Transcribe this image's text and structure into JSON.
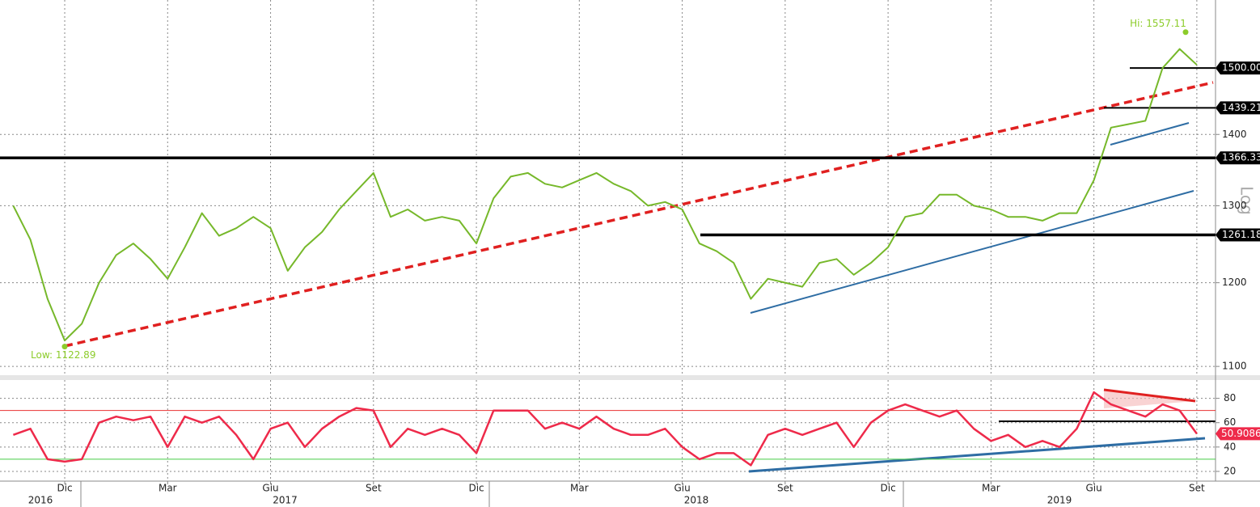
{
  "chart_data": {
    "type": "line",
    "ylog": true,
    "grid": true,
    "categories": [
      null,
      null,
      null,
      "Dic",
      null,
      null,
      null,
      null,
      null,
      "Mar",
      null,
      null,
      null,
      null,
      null,
      "Giu",
      null,
      null,
      null,
      null,
      null,
      "Set",
      null,
      null,
      null,
      null,
      null,
      "Dic",
      null,
      null,
      null,
      null,
      null,
      "Mar",
      null,
      null,
      null,
      null,
      null,
      "Giu",
      null,
      null,
      null,
      null,
      null,
      "Set",
      null,
      null,
      null,
      null,
      null,
      "Dic",
      null,
      null,
      null,
      null,
      null,
      "Mar",
      null,
      null,
      null,
      null,
      null,
      "Giu",
      null,
      null,
      null,
      null,
      null,
      "Set",
      null
    ],
    "years": [
      "2016",
      "2017",
      "2018",
      "2019"
    ],
    "series": [
      {
        "color": "#76b82a",
        "values": [
          1300,
          1255,
          1180,
          1130,
          1150,
          1200,
          1235,
          1250,
          1230,
          1205,
          1245,
          1290,
          1260,
          1270,
          1285,
          1270,
          1215,
          1245,
          1265,
          1295,
          1320,
          1345,
          1285,
          1295,
          1280,
          1285,
          1280,
          1250,
          1310,
          1340,
          1345,
          1330,
          1325,
          1335,
          1345,
          1330,
          1320,
          1300,
          1305,
          1295,
          1250,
          1240,
          1225,
          1180,
          1205,
          1200,
          1195,
          1225,
          1230,
          1210,
          1225,
          1245,
          1285,
          1290,
          1315,
          1315,
          1300,
          1295,
          1285,
          1285,
          1280,
          1290,
          1290,
          1335,
          1410,
          1415,
          1420,
          1500,
          1530,
          1505,
          null
        ]
      },
      {
        "color": "#ee2a4a",
        "axis": "y2",
        "values": [
          50,
          55,
          30,
          28,
          30,
          60,
          65,
          62,
          65,
          40,
          65,
          60,
          65,
          50,
          30,
          55,
          60,
          40,
          55,
          65,
          72,
          70,
          40,
          55,
          50,
          55,
          50,
          35,
          70,
          70,
          70,
          55,
          60,
          55,
          65,
          55,
          50,
          50,
          55,
          40,
          30,
          35,
          35,
          25,
          50,
          55,
          50,
          55,
          60,
          40,
          60,
          70,
          75,
          70,
          65,
          70,
          55,
          45,
          50,
          40,
          45,
          40,
          55,
          85,
          75,
          70,
          65,
          75,
          70,
          50.9086,
          null
        ]
      }
    ],
    "ylim": [
      1090,
      1610
    ],
    "yticks": [
      1100,
      1200,
      1300,
      1400
    ],
    "y2lim": [
      12,
      95
    ],
    "y2ticks": [
      20,
      40,
      60,
      80
    ],
    "scale_label": "Log",
    "levels": [
      {
        "value": 1500,
        "label": "1500.00"
      },
      {
        "value": 1439.21,
        "label": "1439.21"
      },
      {
        "value": 1366.33,
        "label": "1366.33"
      },
      {
        "value": 1261.18,
        "label": "1261.18"
      }
    ],
    "rsi_levels": [
      {
        "value": 70,
        "color": "#e83030"
      },
      {
        "value": 30,
        "color": "#44cc44"
      }
    ],
    "high": 1557.11,
    "high_label": "Hi: 1557.11",
    "low": 1122.89,
    "low_label": "Low: 1122.89"
  }
}
